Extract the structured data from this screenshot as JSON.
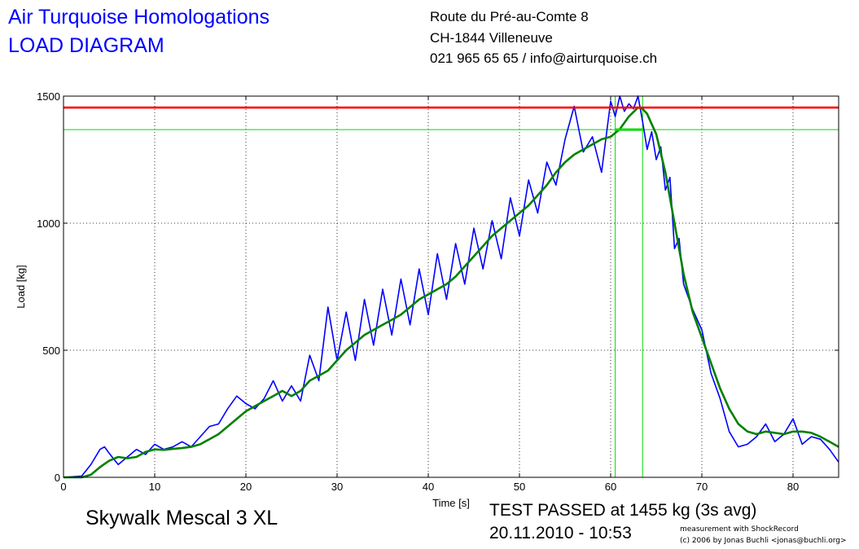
{
  "header": {
    "title_line1": "Air Turquoise Homologations",
    "title_line2": "LOAD DIAGRAM",
    "address_line1": "Route du Pré-au-Comte 8",
    "address_line2": "CH-1844 Villeneuve",
    "address_line3": "021 965 65 65 / info@airturquoise.ch"
  },
  "footer": {
    "model": "Skywalk Mescal 3 XL",
    "result": "TEST PASSED at 1455 kg (3s avg)",
    "datetime": "20.11.2010 - 10:53",
    "credit_line1": "measurement with ShockRecord",
    "credit_line2": "(c) 2006 by Jonas Buchli <jonas@buchli.org>"
  },
  "colors": {
    "raw": "#0000ff",
    "avg": "#008000",
    "limit": "#ff0000",
    "marker": "#00dd00"
  },
  "chart_data": {
    "type": "line",
    "xlabel": "Time [s]",
    "ylabel": "Load [kg]",
    "xlim": [
      0,
      85
    ],
    "ylim": [
      0,
      1500
    ],
    "xticks": [
      0,
      10,
      20,
      30,
      40,
      50,
      60,
      70,
      80
    ],
    "yticks": [
      0,
      500,
      1000,
      1500
    ],
    "grid": true,
    "reference_lines": {
      "limit_load": 1455,
      "avg_level": 1368,
      "window_start": 60.5,
      "window_end": 63.5
    },
    "series": [
      {
        "key": "raw",
        "x": [
          0,
          2,
          3,
          4,
          4.5,
          5,
          6,
          7,
          8,
          9,
          10,
          11,
          12,
          13,
          14,
          15,
          16,
          17,
          18,
          19,
          20,
          21,
          22,
          23,
          24,
          25,
          26,
          27,
          28,
          29,
          30,
          31,
          32,
          33,
          34,
          35,
          36,
          37,
          38,
          39,
          40,
          41,
          42,
          43,
          44,
          45,
          46,
          47,
          48,
          49,
          50,
          51,
          52,
          53,
          54,
          55,
          56,
          57,
          58,
          59,
          60,
          60.5,
          61,
          61.5,
          62,
          62.5,
          63,
          63.5,
          64,
          64.5,
          65,
          65.5,
          66,
          66.5,
          67,
          67.5,
          68,
          69,
          70,
          71,
          72,
          73,
          74,
          75,
          76,
          77,
          78,
          79,
          80,
          81,
          82,
          83,
          84,
          85
        ],
        "y": [
          0,
          5,
          50,
          110,
          120,
          95,
          50,
          80,
          110,
          90,
          130,
          110,
          120,
          140,
          120,
          160,
          200,
          210,
          270,
          320,
          290,
          270,
          310,
          380,
          300,
          360,
          300,
          480,
          380,
          670,
          460,
          650,
          460,
          700,
          520,
          740,
          560,
          780,
          600,
          820,
          640,
          880,
          700,
          920,
          760,
          980,
          820,
          1010,
          860,
          1100,
          950,
          1170,
          1040,
          1240,
          1150,
          1330,
          1460,
          1280,
          1340,
          1200,
          1480,
          1420,
          1500,
          1440,
          1470,
          1450,
          1500,
          1400,
          1290,
          1360,
          1250,
          1300,
          1130,
          1180,
          900,
          940,
          760,
          660,
          580,
          410,
          310,
          180,
          120,
          130,
          160,
          210,
          140,
          170,
          230,
          130,
          160,
          150,
          110,
          60
        ]
      },
      {
        "key": "avg",
        "x": [
          0,
          2,
          3,
          4,
          5,
          6,
          7,
          8,
          9,
          10,
          11,
          12,
          13,
          14,
          15,
          16,
          17,
          18,
          19,
          20,
          21,
          22,
          23,
          24,
          25,
          26,
          27,
          28,
          29,
          30,
          31,
          32,
          33,
          34,
          35,
          36,
          37,
          38,
          39,
          40,
          41,
          42,
          43,
          44,
          45,
          46,
          47,
          48,
          49,
          50,
          51,
          52,
          53,
          54,
          55,
          56,
          57,
          58,
          59,
          60,
          61,
          62,
          63,
          63.5,
          64,
          65,
          66,
          67,
          68,
          69,
          70,
          71,
          72,
          73,
          74,
          75,
          76,
          77,
          78,
          79,
          80,
          81,
          82,
          83,
          84,
          85
        ],
        "y": [
          0,
          0,
          10,
          40,
          65,
          80,
          75,
          80,
          100,
          110,
          108,
          112,
          115,
          120,
          130,
          150,
          170,
          200,
          230,
          260,
          280,
          300,
          320,
          340,
          320,
          340,
          380,
          400,
          420,
          460,
          500,
          530,
          560,
          580,
          600,
          620,
          640,
          670,
          700,
          720,
          740,
          760,
          790,
          830,
          870,
          910,
          950,
          980,
          1010,
          1040,
          1070,
          1110,
          1150,
          1200,
          1240,
          1270,
          1290,
          1310,
          1330,
          1340,
          1370,
          1420,
          1455,
          1450,
          1430,
          1350,
          1200,
          1000,
          800,
          650,
          550,
          450,
          350,
          270,
          210,
          180,
          170,
          180,
          175,
          170,
          180,
          180,
          175,
          160,
          140,
          120
        ]
      }
    ]
  }
}
